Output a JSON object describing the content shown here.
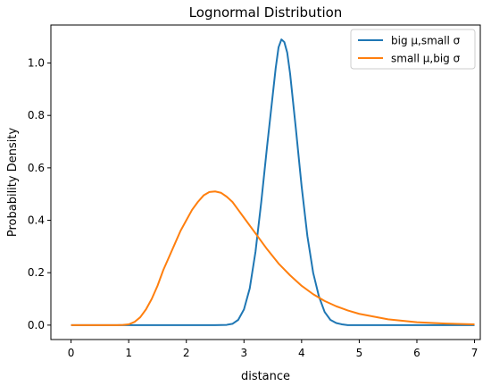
{
  "chart_data": {
    "type": "line",
    "title": "Lognormal Distribution",
    "xlabel": "distance",
    "ylabel": "Probability Density",
    "xlim": [
      -0.35,
      7.1
    ],
    "ylim": [
      -0.055,
      1.145
    ],
    "xticks": [
      0,
      1,
      2,
      3,
      4,
      5,
      6,
      7
    ],
    "xtick_labels": [
      "0",
      "1",
      "2",
      "3",
      "4",
      "5",
      "6",
      "7"
    ],
    "yticks": [
      0.0,
      0.2,
      0.4,
      0.6,
      0.8,
      1.0
    ],
    "ytick_labels": [
      "0.0",
      "0.2",
      "0.4",
      "0.6",
      "0.8",
      "1.0"
    ],
    "grid": false,
    "legend_position": "top-right",
    "series": [
      {
        "name": "big μ,small σ",
        "color": "#1f77b4",
        "points": [
          [
            0.0,
            0.0
          ],
          [
            2.0,
            0.0
          ],
          [
            2.5,
            0.0
          ],
          [
            2.7,
            0.001
          ],
          [
            2.8,
            0.005
          ],
          [
            2.9,
            0.02
          ],
          [
            3.0,
            0.06
          ],
          [
            3.1,
            0.14
          ],
          [
            3.2,
            0.28
          ],
          [
            3.3,
            0.47
          ],
          [
            3.4,
            0.68
          ],
          [
            3.5,
            0.88
          ],
          [
            3.55,
            0.98
          ],
          [
            3.6,
            1.06
          ],
          [
            3.65,
            1.09
          ],
          [
            3.7,
            1.08
          ],
          [
            3.75,
            1.04
          ],
          [
            3.8,
            0.96
          ],
          [
            3.9,
            0.75
          ],
          [
            4.0,
            0.53
          ],
          [
            4.1,
            0.34
          ],
          [
            4.2,
            0.2
          ],
          [
            4.3,
            0.11
          ],
          [
            4.4,
            0.05
          ],
          [
            4.5,
            0.02
          ],
          [
            4.6,
            0.008
          ],
          [
            4.7,
            0.003
          ],
          [
            4.8,
            0.0
          ],
          [
            5.0,
            0.0
          ],
          [
            7.0,
            0.0
          ]
        ]
      },
      {
        "name": "small μ,big σ",
        "color": "#ff7f0e",
        "points": [
          [
            0.0,
            0.0
          ],
          [
            0.8,
            0.0
          ],
          [
            0.9,
            0.001
          ],
          [
            1.0,
            0.003
          ],
          [
            1.1,
            0.012
          ],
          [
            1.2,
            0.03
          ],
          [
            1.3,
            0.06
          ],
          [
            1.4,
            0.1
          ],
          [
            1.5,
            0.15
          ],
          [
            1.6,
            0.21
          ],
          [
            1.7,
            0.26
          ],
          [
            1.8,
            0.31
          ],
          [
            1.9,
            0.36
          ],
          [
            2.0,
            0.4
          ],
          [
            2.1,
            0.44
          ],
          [
            2.2,
            0.47
          ],
          [
            2.3,
            0.495
          ],
          [
            2.4,
            0.508
          ],
          [
            2.5,
            0.51
          ],
          [
            2.6,
            0.505
          ],
          [
            2.7,
            0.49
          ],
          [
            2.8,
            0.47
          ],
          [
            2.9,
            0.44
          ],
          [
            3.0,
            0.41
          ],
          [
            3.2,
            0.35
          ],
          [
            3.4,
            0.29
          ],
          [
            3.6,
            0.235
          ],
          [
            3.8,
            0.19
          ],
          [
            4.0,
            0.15
          ],
          [
            4.2,
            0.118
          ],
          [
            4.4,
            0.092
          ],
          [
            4.6,
            0.072
          ],
          [
            4.8,
            0.056
          ],
          [
            5.0,
            0.043
          ],
          [
            5.5,
            0.022
          ],
          [
            6.0,
            0.011
          ],
          [
            6.5,
            0.006
          ],
          [
            7.0,
            0.003
          ]
        ]
      }
    ]
  }
}
